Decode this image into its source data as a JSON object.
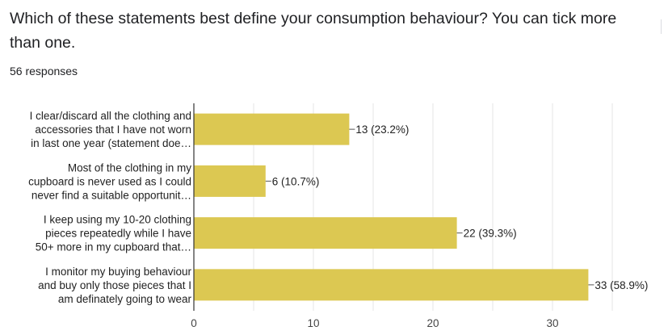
{
  "question": {
    "title": "Which of these statements best define your consumption behaviour? You can tick more than one.",
    "responses": "56 responses"
  },
  "colors": {
    "bar": "#dcc852",
    "grid": "#e6e6e6",
    "axis": "#333333",
    "leader": "#555555"
  },
  "chart_data": {
    "type": "bar",
    "orientation": "horizontal",
    "categories": [
      [
        "I clear/discard all the clothing and",
        "accessories that I have not worn",
        "in last one year (statement doe…"
      ],
      [
        "Most of the clothing in my",
        "cupboard is never used as I could",
        "never find a suitable opportunit…"
      ],
      [
        "I keep using my 10-20 clothing",
        "pieces repeatedly while I have",
        "50+ more in my cupboard that…"
      ],
      [
        "I monitor my buying behaviour",
        "and buy only those pieces that I",
        "am definately going to wear"
      ]
    ],
    "values": [
      13,
      6,
      22,
      33
    ],
    "data_labels": [
      "13 (23.2%)",
      "6 (10.7%)",
      "22 (39.3%)",
      "33 (58.9%)"
    ],
    "xlim": [
      0,
      40
    ],
    "xticks": [
      0,
      10,
      20,
      30
    ],
    "grid": true
  }
}
